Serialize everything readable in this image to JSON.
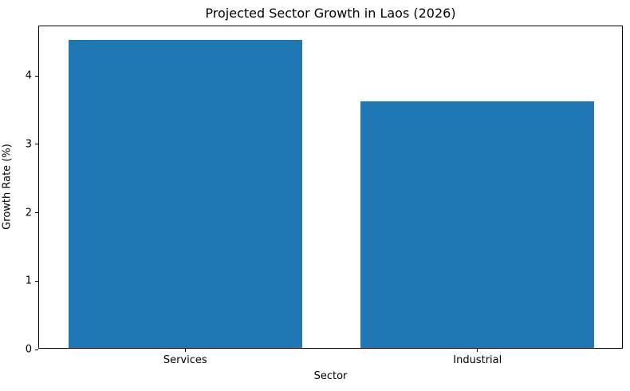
{
  "chart_data": {
    "type": "bar",
    "title": "Projected Sector Growth in Laos (2026)",
    "xlabel": "Sector",
    "ylabel": "Growth Rate (%)",
    "categories": [
      "Services",
      "Industrial"
    ],
    "values": [
      4.5,
      3.6
    ],
    "ylim": [
      0,
      4.725
    ],
    "yticks": [
      0,
      1,
      2,
      3,
      4
    ],
    "bar_width_fraction": 0.8,
    "bar_color": "#1f77b4",
    "axis_color": "#000000",
    "text_color": "#000000",
    "background_color": "#ffffff",
    "grid": false,
    "legend_position": "none"
  }
}
